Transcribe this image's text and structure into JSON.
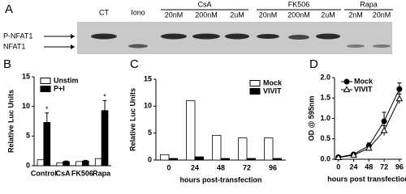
{
  "blot": {
    "panel": "A",
    "lanes": [
      "CT",
      "Iono",
      "20nM",
      "200nM",
      "2uM",
      "20nM",
      "200nM",
      "2uM",
      "2nM",
      "20nM"
    ],
    "groups": [
      "CsA",
      "FK506",
      "Rapa"
    ],
    "bands": [
      "P-NFAT1",
      "NFAT1"
    ]
  },
  "chart_data": [
    {
      "type": "bar",
      "panel": "B",
      "ylabel": "Relative Luc Units",
      "categories": [
        "Control",
        "CsA",
        "FK506",
        "Rapa"
      ],
      "series": [
        {
          "name": "Unstim",
          "color": "#ffffff",
          "values": [
            1,
            0.5,
            0.7,
            1.2
          ]
        },
        {
          "name": "P+I",
          "color": "#000000",
          "values": [
            7.3,
            0.7,
            0.8,
            9.3
          ],
          "errors": [
            1.6,
            0.1,
            0.1,
            1.7
          ]
        }
      ],
      "annotations": [
        {
          "text": "*",
          "category": "Control"
        },
        {
          "text": "*",
          "category": "Rapa"
        }
      ],
      "ylim": [
        0,
        15
      ],
      "yticks": [
        0,
        5,
        10,
        15
      ],
      "legend": "top-left"
    },
    {
      "type": "bar",
      "panel": "C",
      "ylabel": "Relative Luc Units",
      "xlabel": "hours post-transfection",
      "categories": [
        "0",
        "24",
        "48",
        "72",
        "96"
      ],
      "series": [
        {
          "name": "Mock",
          "color": "#ffffff",
          "values": [
            1,
            11,
            4.6,
            4.1,
            4.1
          ]
        },
        {
          "name": "VIVIT",
          "color": "#000000",
          "values": [
            0.3,
            0.6,
            0.3,
            0.3,
            0.3
          ]
        }
      ],
      "ylim": [
        0,
        15
      ],
      "yticks": [
        0,
        5,
        10,
        15
      ],
      "legend": "top-right"
    },
    {
      "type": "line",
      "panel": "D",
      "ylabel": "OD @ 595nm",
      "xlabel": "hours post transfection",
      "x": [
        0,
        24,
        48,
        72,
        96
      ],
      "series": [
        {
          "name": "Mock",
          "color": "#000000",
          "marker": "circle",
          "values": [
            0.05,
            0.12,
            0.33,
            0.93,
            1.72
          ],
          "errors": [
            0.02,
            0.03,
            0.07,
            0.22,
            0.15
          ]
        },
        {
          "name": "VIVIT",
          "color": "#000000",
          "marker": "triangle",
          "values": [
            0.04,
            0.1,
            0.27,
            0.7,
            1.48
          ],
          "errors": [
            0.02,
            0.03,
            0.06,
            0.12,
            0.12
          ]
        }
      ],
      "xlim": [
        -6,
        100
      ],
      "xticks": [
        0,
        24,
        48,
        72,
        96
      ],
      "ylim": [
        0,
        2
      ],
      "yticks": [
        {
          "value": 0,
          "label": "0.0"
        },
        {
          "value": 0.5,
          "label": "0.5"
        },
        {
          "value": 1,
          "label": "1.0"
        },
        {
          "value": 1.5,
          "label": "1.5"
        },
        {
          "value": 2,
          "label": "2.0"
        }
      ],
      "legend": "top-left"
    }
  ]
}
